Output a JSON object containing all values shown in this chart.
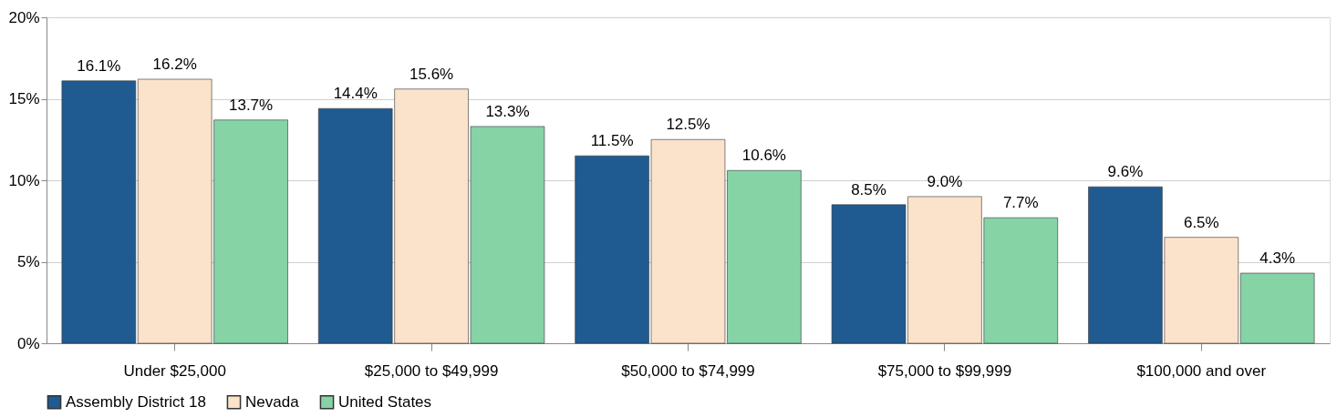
{
  "chart_data": {
    "type": "bar",
    "categories": [
      "Under $25,000",
      "$25,000 to $49,999",
      "$50,000 to $74,999",
      "$75,000 to $99,999",
      "$100,000 and over"
    ],
    "series": [
      {
        "name": "Assembly District 18",
        "color": "#1f5b91",
        "values": [
          16.1,
          14.4,
          11.5,
          8.5,
          9.6
        ],
        "value_labels": [
          "16.1%",
          "14.4%",
          "11.5%",
          "8.5%",
          "9.6%"
        ]
      },
      {
        "name": "Nevada",
        "color": "#fbe2cb",
        "values": [
          16.2,
          15.6,
          12.5,
          9.0,
          6.5
        ],
        "value_labels": [
          "16.2%",
          "15.6%",
          "12.5%",
          "9.0%",
          "6.5%"
        ]
      },
      {
        "name": "United States",
        "color": "#86d3a6",
        "values": [
          13.7,
          13.3,
          10.6,
          7.7,
          4.3
        ],
        "value_labels": [
          "13.7%",
          "13.3%",
          "10.6%",
          "7.7%",
          "4.3%"
        ]
      }
    ],
    "ylim": [
      0,
      20
    ],
    "yticks": [
      {
        "value": 0,
        "label": "0%"
      },
      {
        "value": 5,
        "label": "5%"
      },
      {
        "value": 10,
        "label": "10%"
      },
      {
        "value": 15,
        "label": "15%"
      },
      {
        "value": 20,
        "label": "20%"
      }
    ],
    "grid": "y",
    "legend": "bottom"
  }
}
